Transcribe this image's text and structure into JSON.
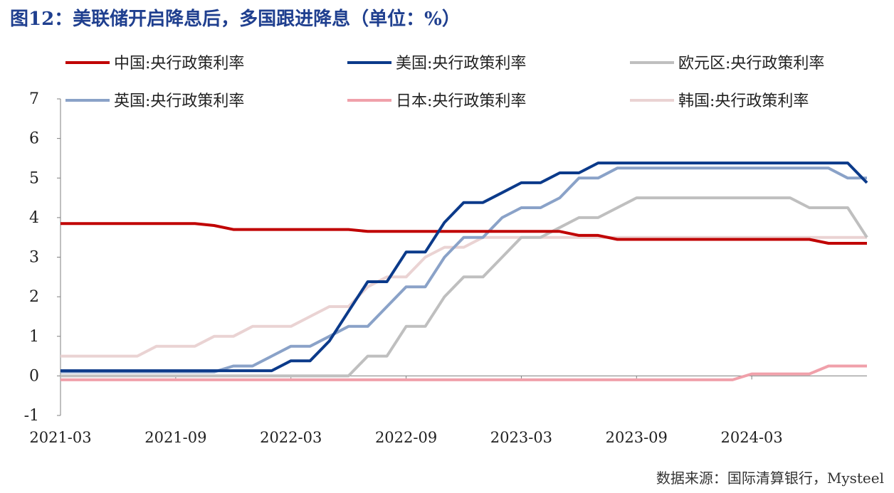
{
  "title": "图12：美联储开启降息后，多国跟进降息（单位：%）",
  "source": "数据来源：国际清算银行，Mysteel",
  "chart_data": {
    "type": "line",
    "ylim": [
      -1,
      7
    ],
    "yticks": [
      -1,
      0,
      1,
      2,
      3,
      4,
      5,
      6,
      7
    ],
    "x_range": [
      "2021-03",
      "2024-09"
    ],
    "xticks": [
      "2021-03",
      "2021-09",
      "2022-03",
      "2022-09",
      "2023-03",
      "2023-09",
      "2024-03"
    ],
    "grid": false,
    "legend_position": "top",
    "series": [
      {
        "name": "中国:央行政策利率",
        "color": "#c00000",
        "points": [
          [
            "2021-03",
            3.85
          ],
          [
            "2021-10",
            3.85
          ],
          [
            "2021-11",
            3.8
          ],
          [
            "2021-12",
            3.7
          ],
          [
            "2022-06",
            3.7
          ],
          [
            "2022-07",
            3.65
          ],
          [
            "2023-05",
            3.65
          ],
          [
            "2023-06",
            3.55
          ],
          [
            "2023-07",
            3.55
          ],
          [
            "2023-08",
            3.45
          ],
          [
            "2024-06",
            3.45
          ],
          [
            "2024-07",
            3.35
          ],
          [
            "2024-09",
            3.35
          ]
        ]
      },
      {
        "name": "美国:央行政策利率",
        "color": "#0b3a8a",
        "points": [
          [
            "2021-03",
            0.13
          ],
          [
            "2022-02",
            0.13
          ],
          [
            "2022-03",
            0.38
          ],
          [
            "2022-04",
            0.38
          ],
          [
            "2022-05",
            0.88
          ],
          [
            "2022-06",
            1.63
          ],
          [
            "2022-07",
            2.38
          ],
          [
            "2022-08",
            2.38
          ],
          [
            "2022-09",
            3.13
          ],
          [
            "2022-10",
            3.13
          ],
          [
            "2022-11",
            3.88
          ],
          [
            "2022-12",
            4.38
          ],
          [
            "2023-01",
            4.38
          ],
          [
            "2023-02",
            4.63
          ],
          [
            "2023-03",
            4.88
          ],
          [
            "2023-04",
            4.88
          ],
          [
            "2023-05",
            5.13
          ],
          [
            "2023-06",
            5.13
          ],
          [
            "2023-07",
            5.38
          ],
          [
            "2024-08",
            5.38
          ],
          [
            "2024-09",
            4.88
          ]
        ]
      },
      {
        "name": "欧元区:央行政策利率",
        "color": "#bfbfbf",
        "points": [
          [
            "2021-03",
            0
          ],
          [
            "2022-06",
            0
          ],
          [
            "2022-07",
            0.5
          ],
          [
            "2022-08",
            0.5
          ],
          [
            "2022-09",
            1.25
          ],
          [
            "2022-10",
            1.25
          ],
          [
            "2022-11",
            2.0
          ],
          [
            "2022-12",
            2.5
          ],
          [
            "2023-01",
            2.5
          ],
          [
            "2023-02",
            3.0
          ],
          [
            "2023-03",
            3.5
          ],
          [
            "2023-04",
            3.5
          ],
          [
            "2023-05",
            3.75
          ],
          [
            "2023-06",
            4.0
          ],
          [
            "2023-07",
            4.0
          ],
          [
            "2023-08",
            4.25
          ],
          [
            "2023-09",
            4.5
          ],
          [
            "2024-05",
            4.5
          ],
          [
            "2024-06",
            4.25
          ],
          [
            "2024-08",
            4.25
          ],
          [
            "2024-09",
            3.5
          ]
        ]
      },
      {
        "name": "英国:央行政策利率",
        "color": "#8aa2c8",
        "points": [
          [
            "2021-03",
            0.1
          ],
          [
            "2021-11",
            0.1
          ],
          [
            "2021-12",
            0.25
          ],
          [
            "2022-01",
            0.25
          ],
          [
            "2022-02",
            0.5
          ],
          [
            "2022-03",
            0.75
          ],
          [
            "2022-04",
            0.75
          ],
          [
            "2022-05",
            1.0
          ],
          [
            "2022-06",
            1.25
          ],
          [
            "2022-07",
            1.25
          ],
          [
            "2022-08",
            1.75
          ],
          [
            "2022-09",
            2.25
          ],
          [
            "2022-10",
            2.25
          ],
          [
            "2022-11",
            3.0
          ],
          [
            "2022-12",
            3.5
          ],
          [
            "2023-01",
            3.5
          ],
          [
            "2023-02",
            4.0
          ],
          [
            "2023-03",
            4.25
          ],
          [
            "2023-04",
            4.25
          ],
          [
            "2023-05",
            4.5
          ],
          [
            "2023-06",
            5.0
          ],
          [
            "2023-07",
            5.0
          ],
          [
            "2023-08",
            5.25
          ],
          [
            "2024-07",
            5.25
          ],
          [
            "2024-08",
            5.0
          ],
          [
            "2024-09",
            5.0
          ]
        ]
      },
      {
        "name": "日本:央行政策利率",
        "color": "#f0a0aa",
        "points": [
          [
            "2021-03",
            -0.1
          ],
          [
            "2024-02",
            -0.1
          ],
          [
            "2024-03",
            0.05
          ],
          [
            "2024-06",
            0.05
          ],
          [
            "2024-07",
            0.25
          ],
          [
            "2024-09",
            0.25
          ]
        ]
      },
      {
        "name": "韩国:央行政策利率",
        "color": "#ead3d3",
        "points": [
          [
            "2021-03",
            0.5
          ],
          [
            "2021-07",
            0.5
          ],
          [
            "2021-08",
            0.75
          ],
          [
            "2021-10",
            0.75
          ],
          [
            "2021-11",
            1.0
          ],
          [
            "2021-12",
            1.0
          ],
          [
            "2022-01",
            1.25
          ],
          [
            "2022-03",
            1.25
          ],
          [
            "2022-04",
            1.5
          ],
          [
            "2022-05",
            1.75
          ],
          [
            "2022-06",
            1.75
          ],
          [
            "2022-07",
            2.25
          ],
          [
            "2022-08",
            2.5
          ],
          [
            "2022-09",
            2.5
          ],
          [
            "2022-10",
            3.0
          ],
          [
            "2022-11",
            3.25
          ],
          [
            "2022-12",
            3.25
          ],
          [
            "2023-01",
            3.5
          ],
          [
            "2024-09",
            3.5
          ]
        ]
      }
    ]
  }
}
